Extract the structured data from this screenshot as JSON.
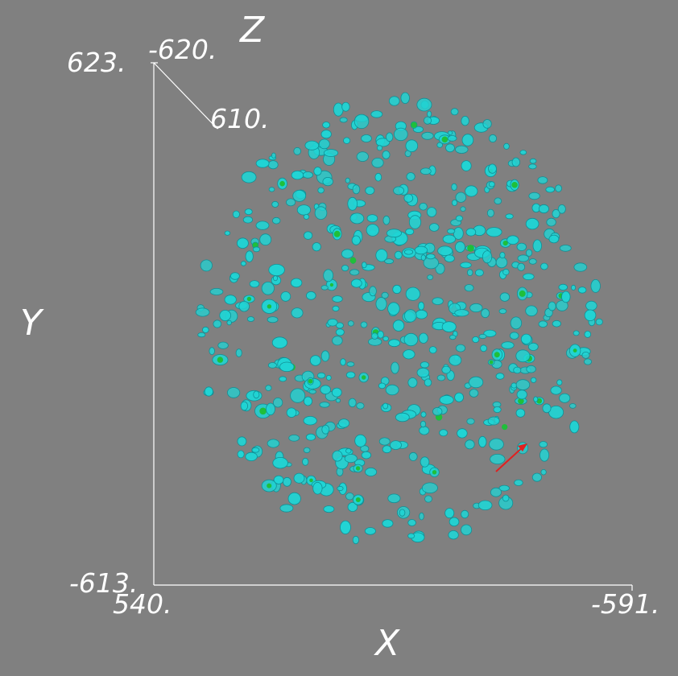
{
  "viewer": {
    "background_color": "#808080",
    "axis_line_color": "#ffffff",
    "label_color": "#ffffff",
    "isosurface_color": "#20d4d4",
    "isosurface_highlight_color": "#1fbf3a",
    "peak_color": "#e0e020",
    "arrow_color": "#e02020"
  },
  "axes": {
    "x": {
      "title": "X",
      "min_label": "540.",
      "max_label": "-591."
    },
    "y": {
      "title": "Y",
      "min_label": "-613.",
      "max_label": "623."
    },
    "z": {
      "title": "Z",
      "min_label": "610.",
      "max_label": "-620."
    }
  }
}
